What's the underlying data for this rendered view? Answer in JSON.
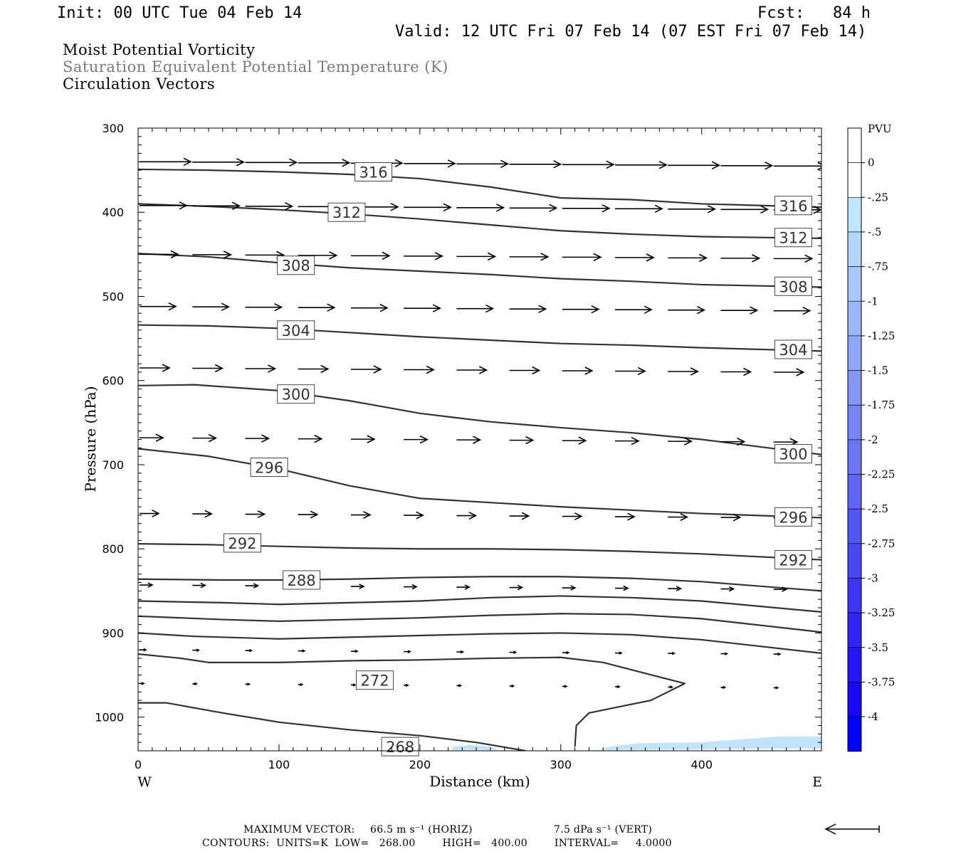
{
  "header": {
    "init": "Init: 00 UTC Tue 04 Feb 14",
    "fcst": "Fcst:   84 h",
    "valid": "Valid: 12 UTC Fri 07 Feb 14 (07 EST Fri 07 Feb 14)"
  },
  "titles": {
    "line1": "Moist Potential Vorticity",
    "line2": "Saturation Equivalent Potential Temperature (K)",
    "line3": "Circulation Vectors"
  },
  "footer": {
    "max_vector_label": "MAXIMUM VECTOR:",
    "horiz": "66.5 m s⁻¹ (HORIZ)",
    "vert": "7.5 dPa s⁻¹ (VERT)",
    "contours": "CONTOURS:  UNITS=K  LOW=   268.00        HIGH=   400.00        INTERVAL=     4.0000"
  },
  "colors": {
    "contour": "#333333",
    "vector": "#000000",
    "pv_fill": "#bfe4fb"
  },
  "chart_data": {
    "type": "line",
    "xlabel": "Distance (km)",
    "ylabel": "Pressure (hPa)",
    "xlim": [
      0,
      485
    ],
    "ylim": [
      1040,
      300
    ],
    "x_ticks": [
      0,
      100,
      200,
      300,
      400
    ],
    "y_ticks": [
      300,
      400,
      500,
      600,
      700,
      800,
      900,
      1000
    ],
    "x_end_labels": {
      "left": "W",
      "right": "E"
    },
    "colorbar": {
      "unit": "PVU",
      "ticks": [
        "0",
        "-.25",
        "-.5",
        "-.75",
        "-1",
        "-1.25",
        "-1.5",
        "-1.75",
        "-2",
        "-2.25",
        "-2.5",
        "-2.75",
        "-3",
        "-3.25",
        "-3.5",
        "-3.75",
        "-4"
      ],
      "colors": [
        "#ffffff",
        "#ffffff",
        "#c0e6fb",
        "#b4d6fa",
        "#a8c6f9",
        "#9cb6f8",
        "#90a6f7",
        "#8496f6",
        "#7886f5",
        "#6c76f4",
        "#6066f3",
        "#5456f2",
        "#4846f1",
        "#3c36f2",
        "#3026f3",
        "#2416f4",
        "#1808f5",
        "#0000ff"
      ]
    },
    "series": [
      {
        "name": "316",
        "labels": [
          [
            167,
            352
          ],
          [
            465,
            392
          ]
        ],
        "points": [
          [
            0,
            349
          ],
          [
            50,
            350
          ],
          [
            100,
            352
          ],
          [
            150,
            355
          ],
          [
            200,
            360
          ],
          [
            250,
            370
          ],
          [
            300,
            383
          ],
          [
            350,
            385
          ],
          [
            400,
            390
          ],
          [
            485,
            394
          ]
        ]
      },
      {
        "name": "312",
        "labels": [
          [
            148,
            400
          ],
          [
            465,
            430
          ]
        ],
        "points": [
          [
            0,
            390
          ],
          [
            50,
            393
          ],
          [
            100,
            397
          ],
          [
            150,
            402
          ],
          [
            200,
            408
          ],
          [
            250,
            415
          ],
          [
            300,
            422
          ],
          [
            350,
            426
          ],
          [
            400,
            429
          ],
          [
            485,
            431
          ]
        ]
      },
      {
        "name": "308",
        "labels": [
          [
            112,
            463
          ],
          [
            465,
            488
          ]
        ],
        "points": [
          [
            0,
            449
          ],
          [
            50,
            453
          ],
          [
            100,
            460
          ],
          [
            150,
            466
          ],
          [
            200,
            470
          ],
          [
            250,
            474
          ],
          [
            300,
            479
          ],
          [
            350,
            482
          ],
          [
            400,
            486
          ],
          [
            485,
            489
          ]
        ]
      },
      {
        "name": "304",
        "labels": [
          [
            112,
            540
          ],
          [
            465,
            563
          ]
        ],
        "points": [
          [
            0,
            534
          ],
          [
            50,
            535
          ],
          [
            100,
            538
          ],
          [
            150,
            543
          ],
          [
            200,
            548
          ],
          [
            250,
            552
          ],
          [
            300,
            556
          ],
          [
            350,
            558
          ],
          [
            400,
            561
          ],
          [
            485,
            565
          ]
        ]
      },
      {
        "name": "300",
        "labels": [
          [
            112,
            616
          ],
          [
            465,
            687
          ]
        ],
        "points": [
          [
            0,
            606
          ],
          [
            40,
            605
          ],
          [
            100,
            612
          ],
          [
            150,
            624
          ],
          [
            200,
            639
          ],
          [
            250,
            649
          ],
          [
            300,
            656
          ],
          [
            350,
            662
          ],
          [
            400,
            670
          ],
          [
            485,
            688
          ]
        ]
      },
      {
        "name": "296",
        "labels": [
          [
            93,
            703
          ],
          [
            465,
            762
          ]
        ],
        "points": [
          [
            0,
            681
          ],
          [
            50,
            690
          ],
          [
            100,
            705
          ],
          [
            150,
            725
          ],
          [
            200,
            740
          ],
          [
            250,
            745
          ],
          [
            300,
            750
          ],
          [
            350,
            754
          ],
          [
            400,
            758
          ],
          [
            485,
            763
          ]
        ]
      },
      {
        "name": "292",
        "labels": [
          [
            74,
            793
          ],
          [
            465,
            813
          ]
        ],
        "points": [
          [
            0,
            794
          ],
          [
            50,
            795
          ],
          [
            100,
            797
          ],
          [
            150,
            799
          ],
          [
            200,
            800
          ],
          [
            250,
            800
          ],
          [
            300,
            801
          ],
          [
            350,
            803
          ],
          [
            400,
            806
          ],
          [
            485,
            813
          ]
        ]
      },
      {
        "name": "288",
        "labels": [
          [
            116,
            837
          ]
        ],
        "points": [
          [
            0,
            836
          ],
          [
            60,
            837
          ],
          [
            100,
            837
          ],
          [
            150,
            836
          ],
          [
            200,
            834
          ],
          [
            250,
            833
          ],
          [
            300,
            833
          ],
          [
            350,
            835
          ],
          [
            400,
            839
          ],
          [
            485,
            850
          ]
        ]
      },
      {
        "name": "284",
        "labels": [],
        "points": [
          [
            0,
            862
          ],
          [
            60,
            864
          ],
          [
            100,
            866
          ],
          [
            150,
            864
          ],
          [
            200,
            862
          ],
          [
            250,
            858
          ],
          [
            300,
            856
          ],
          [
            350,
            858
          ],
          [
            400,
            862
          ],
          [
            485,
            875
          ]
        ]
      },
      {
        "name": "280",
        "labels": [],
        "points": [
          [
            0,
            880
          ],
          [
            60,
            884
          ],
          [
            100,
            886
          ],
          [
            150,
            884
          ],
          [
            200,
            882
          ],
          [
            250,
            879
          ],
          [
            300,
            877
          ],
          [
            350,
            878
          ],
          [
            400,
            883
          ],
          [
            485,
            899
          ]
        ]
      },
      {
        "name": "276",
        "labels": [],
        "points": [
          [
            0,
            900
          ],
          [
            40,
            904
          ],
          [
            100,
            907
          ],
          [
            150,
            905
          ],
          [
            200,
            903
          ],
          [
            250,
            901
          ],
          [
            300,
            900
          ],
          [
            350,
            902
          ],
          [
            400,
            908
          ],
          [
            485,
            924
          ]
        ]
      },
      {
        "name": "272",
        "labels": [
          [
            168,
            956
          ]
        ],
        "points": [
          [
            0,
            925
          ],
          [
            30,
            930
          ],
          [
            50,
            935
          ],
          [
            100,
            935
          ],
          [
            150,
            933
          ],
          [
            200,
            932
          ],
          [
            250,
            930
          ],
          [
            300,
            929
          ],
          [
            330,
            935
          ],
          [
            360,
            948
          ],
          [
            388,
            960
          ],
          [
            364,
            980
          ],
          [
            320,
            995
          ],
          [
            311,
            1010
          ],
          [
            310,
            1035
          ]
        ]
      },
      {
        "name": "268",
        "labels": [
          [
            186,
            1035
          ]
        ],
        "points": [
          [
            0,
            983
          ],
          [
            20,
            983
          ],
          [
            60,
            995
          ],
          [
            100,
            1006
          ],
          [
            150,
            1015
          ],
          [
            200,
            1022
          ],
          [
            240,
            1030
          ],
          [
            275,
            1040
          ]
        ]
      }
    ],
    "pv_regions": [
      {
        "level": "-.25 to -.5",
        "points": [
          [
            223,
            1035
          ],
          [
            236,
            1033
          ],
          [
            250,
            1035
          ],
          [
            256,
            1039
          ],
          [
            223,
            1039
          ]
        ]
      },
      {
        "level": "-.25 to -.5",
        "points": [
          [
            327,
            1039
          ],
          [
            335,
            1035
          ],
          [
            355,
            1031
          ],
          [
            400,
            1030
          ],
          [
            430,
            1026
          ],
          [
            455,
            1023
          ],
          [
            485,
            1023
          ],
          [
            485,
            1037
          ],
          [
            327,
            1039
          ]
        ]
      }
    ],
    "vector_rows": [
      {
        "p": 340,
        "length": 24
      },
      {
        "p": 392,
        "length": 22
      },
      {
        "p": 450,
        "length": 18
      },
      {
        "p": 512,
        "length": 17
      },
      {
        "p": 585,
        "length": 14
      },
      {
        "p": 668,
        "length": 11
      },
      {
        "p": 758,
        "length": 9
      },
      {
        "p": 843,
        "length": 6
      },
      {
        "p": 920,
        "length": 3
      },
      {
        "p": 960,
        "length": 2
      }
    ],
    "reference_vector": {
      "direction": "left"
    }
  }
}
